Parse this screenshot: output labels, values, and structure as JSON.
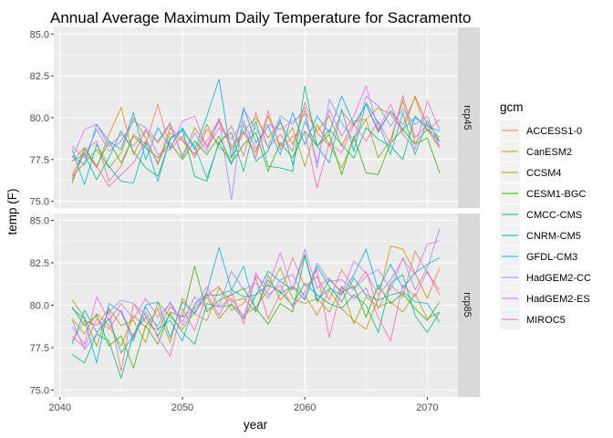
{
  "chart_data": {
    "type": "line",
    "title": "Annual Average Maximum Daily Temperature for Sacramento",
    "xlabel": "year",
    "ylabel": "temp (F)",
    "x_ticks": [
      2040,
      2050,
      2060,
      2070
    ],
    "xlim": [
      2039.5,
      2072.5
    ],
    "y_ticks": [
      75.0,
      77.5,
      80.0,
      82.5,
      85.0
    ],
    "y_tick_labels": [
      "75.0",
      "77.5",
      "80.0",
      "82.5",
      "85.0"
    ],
    "ylim": [
      74.6,
      85.4
    ],
    "grid": true,
    "legend_title": "gcm",
    "legend_position": "right",
    "x": [
      2041,
      2042,
      2043,
      2044,
      2045,
      2046,
      2047,
      2048,
      2049,
      2050,
      2051,
      2052,
      2053,
      2054,
      2055,
      2056,
      2057,
      2058,
      2059,
      2060,
      2061,
      2062,
      2063,
      2064,
      2065,
      2066,
      2067,
      2068,
      2069,
      2070,
      2071
    ],
    "series_colors": {
      "ACCESS1-0": "#F8766D",
      "CanESM2": "#D89000",
      "CCSM4": "#A3A500",
      "CESM1-BGC": "#39B600",
      "CMCC-CMS": "#00BF7D",
      "CNRM-CM5": "#00BFC4",
      "GFDL-CM3": "#00B0F6",
      "HadGEM2-CC": "#9590FF",
      "HadGEM2-ES": "#E76BF3",
      "MIROC5": "#FF62BC"
    },
    "panels": [
      {
        "label": "rcp45",
        "series": [
          {
            "name": "ACCESS1-0",
            "values": [
              76.6,
              78.0,
              78.6,
              76.2,
              77.1,
              79.0,
              78.4,
              80.8,
              78.1,
              78.9,
              77.6,
              79.3,
              78.4,
              79.5,
              77.7,
              80.3,
              78.2,
              79.0,
              78.0,
              80.9,
              79.1,
              78.3,
              80.4,
              79.5,
              80.8,
              79.1,
              80.4,
              79.6,
              81.2,
              79.2,
              79.9
            ]
          },
          {
            "name": "CanESM2",
            "values": [
              77.4,
              78.2,
              77.0,
              79.0,
              80.6,
              77.8,
              79.2,
              78.5,
              79.6,
              77.7,
              79.4,
              78.3,
              79.8,
              78.1,
              79.2,
              80.0,
              78.8,
              79.7,
              78.4,
              80.4,
              79.2,
              80.1,
              78.3,
              79.8,
              79.9,
              80.6,
              80.2,
              79.2,
              81.3,
              79.6,
              78.8
            ]
          },
          {
            "name": "CCSM4",
            "values": [
              76.5,
              77.3,
              78.1,
              77.0,
              77.9,
              80.0,
              78.8,
              77.2,
              79.1,
              78.6,
              77.8,
              79.6,
              78.2,
              77.6,
              79.1,
              77.9,
              80.1,
              78.3,
              79.4,
              77.1,
              79.6,
              78.4,
              77.0,
              78.7,
              79.9,
              77.6,
              78.7,
              81.0,
              78.5,
              79.3,
              78.2
            ]
          },
          {
            "name": "CESM1-BGC",
            "values": [
              76.1,
              78.2,
              77.1,
              78.6,
              77.3,
              78.9,
              78.2,
              77.6,
              78.5,
              77.5,
              78.6,
              77.8,
              78.9,
              77.3,
              78.4,
              79.1,
              76.8,
              78.5,
              77.6,
              79.2,
              78.3,
              79.0,
              76.6,
              78.9,
              76.7,
              76.6,
              78.5,
              79.3,
              78.4,
              78.8,
              76.7
            ]
          },
          {
            "name": "CMCC-CMS",
            "values": [
              77.4,
              77.8,
              76.3,
              77.6,
              79.2,
              78.0,
              77.0,
              76.5,
              78.7,
              79.3,
              76.5,
              76.2,
              78.6,
              79.1,
              76.8,
              79.8,
              77.1,
              77.0,
              76.8,
              81.9,
              78.3,
              79.3,
              78.4,
              77.6,
              79.4,
              78.7,
              78.3,
              77.5,
              80.1,
              79.3,
              78.6
            ]
          },
          {
            "name": "CNRM-CM5",
            "values": [
              78.1,
              76.0,
              78.4,
              77.1,
              76.2,
              76.1,
              78.5,
              76.2,
              78.8,
              79.2,
              78.3,
              76.4,
              78.5,
              77.2,
              79.6,
              77.4,
              78.0,
              79.9,
              77.2,
              79.8,
              78.3,
              77.3,
              80.5,
              78.0,
              80.9,
              79.7,
              77.8,
              80.3,
              77.8,
              79.8,
              78.6
            ]
          },
          {
            "name": "GFDL-CM3",
            "values": [
              77.7,
              77.2,
              79.6,
              78.6,
              78.1,
              80.3,
              77.5,
              79.4,
              78.2,
              79.4,
              78.1,
              80.1,
              82.3,
              77.6,
              80.6,
              78.5,
              79.5,
              77.8,
              80.3,
              78.4,
              80.1,
              79.1,
              81.3,
              79.6,
              80.8,
              79.2,
              80.4,
              79.3,
              80.0,
              79.5,
              79.2
            ]
          },
          {
            "name": "HadGEM2-CC",
            "values": [
              78.3,
              77.6,
              79.3,
              78.0,
              78.6,
              79.8,
              79.4,
              78.6,
              79.7,
              77.6,
              79.1,
              78.0,
              80.0,
              75.1,
              80.5,
              79.3,
              78.3,
              80.1,
              79.6,
              80.6,
              77.0,
              81.1,
              79.7,
              78.6,
              81.3,
              80.7,
              79.5,
              80.5,
              79.6,
              80.1,
              78.3
            ]
          },
          {
            "name": "HadGEM2-ES",
            "values": [
              77.6,
              79.3,
              79.6,
              78.3,
              79.0,
              78.3,
              79.3,
              77.8,
              78.1,
              79.8,
              80.1,
              78.2,
              79.4,
              78.7,
              79.8,
              78.1,
              79.6,
              79.3,
              79.8,
              80.2,
              77.3,
              80.5,
              78.9,
              80.1,
              81.9,
              79.3,
              80.8,
              79.0,
              78.1,
              81.0,
              79.3
            ]
          },
          {
            "name": "MIROC5",
            "values": [
              76.3,
              77.9,
              77.1,
              75.9,
              76.6,
              77.3,
              78.6,
              77.3,
              79.4,
              78.7,
              77.8,
              78.6,
              79.9,
              78.3,
              79.2,
              77.6,
              80.4,
              78.1,
              78.9,
              79.1,
              75.8,
              78.5,
              77.9,
              79.6,
              78.6,
              79.8,
              78.4,
              81.3,
              78.8,
              79.6,
              78.2
            ]
          }
        ]
      },
      {
        "label": "rcp85",
        "series": [
          {
            "name": "ACCESS1-0",
            "values": [
              77.9,
              79.1,
              78.8,
              79.8,
              76.1,
              80.1,
              79.0,
              78.5,
              79.9,
              79.3,
              79.8,
              80.6,
              81.1,
              79.7,
              80.1,
              81.6,
              79.2,
              80.7,
              82.8,
              81.1,
              81.7,
              80.3,
              82.1,
              81.0,
              82.0,
              79.8,
              81.2,
              80.5,
              83.2,
              81.9,
              80.9
            ]
          },
          {
            "name": "CanESM2",
            "values": [
              79.2,
              78.3,
              79.5,
              78.8,
              77.6,
              79.4,
              78.7,
              79.8,
              77.8,
              80.4,
              79.5,
              79.1,
              81.0,
              80.2,
              80.4,
              79.6,
              81.8,
              80.3,
              81.1,
              80.6,
              79.4,
              80.9,
              79.8,
              79.1,
              78.6,
              80.4,
              83.5,
              83.3,
              81.9,
              80.4,
              82.2
            ]
          },
          {
            "name": "CCSM4",
            "values": [
              80.3,
              79.3,
              77.6,
              79.8,
              78.8,
              79.1,
              77.8,
              80.2,
              79.3,
              78.6,
              79.6,
              80.5,
              79.2,
              80.1,
              79.4,
              79.9,
              80.9,
              82.2,
              80.4,
              80.1,
              80.4,
              79.6,
              81.1,
              78.9,
              80.5,
              79.9,
              80.2,
              79.6,
              80.7,
              79.2,
              79.6
            ]
          },
          {
            "name": "CESM1-BGC",
            "values": [
              79.9,
              78.8,
              79.4,
              77.6,
              78.2,
              76.3,
              78.8,
              77.7,
              79.6,
              79.3,
              82.3,
              79.6,
              80.3,
              80.6,
              81.0,
              79.8,
              78.9,
              80.1,
              79.6,
              82.9,
              80.2,
              81.5,
              80.8,
              81.1,
              79.3,
              81.2,
              80.1,
              80.7,
              79.8,
              79.1,
              80.2
            ]
          },
          {
            "name": "CMCC-CMS",
            "values": [
              77.1,
              76.6,
              78.3,
              77.9,
              75.7,
              78.3,
              79.3,
              78.2,
              79.5,
              78.4,
              77.7,
              80.1,
              79.9,
              80.0,
              79.2,
              80.6,
              81.2,
              80.8,
              80.0,
              81.3,
              80.6,
              80.1,
              79.8,
              80.6,
              80.0,
              78.4,
              81.3,
              81.8,
              79.4,
              78.4,
              79.6
            ]
          },
          {
            "name": "CNRM-CM5",
            "values": [
              77.7,
              79.7,
              78.4,
              79.2,
              77.2,
              78.2,
              79.9,
              78.6,
              79.1,
              77.9,
              80.1,
              80.6,
              80.6,
              80.9,
              82.3,
              79.6,
              81.5,
              80.7,
              81.1,
              80.3,
              82.3,
              81.1,
              80.2,
              81.6,
              80.6,
              80.3,
              80.6,
              80.8,
              80.2,
              80.1,
              79.0
            ]
          },
          {
            "name": "GFDL-CM3",
            "values": [
              79.8,
              79.2,
              76.6,
              80.1,
              79.6,
              77.9,
              80.0,
              80.2,
              78.1,
              80.2,
              79.5,
              80.8,
              83.4,
              80.9,
              80.5,
              80.6,
              82.0,
              81.4,
              80.9,
              83.0,
              80.3,
              81.0,
              80.6,
              81.8,
              83.3,
              80.9,
              82.4,
              81.0,
              81.9,
              82.4,
              82.8
            ]
          },
          {
            "name": "HadGEM2-CC",
            "values": [
              79.1,
              77.4,
              78.3,
              79.6,
              80.3,
              80.1,
              79.4,
              78.8,
              80.2,
              79.0,
              80.5,
              79.8,
              80.0,
              82.0,
              80.9,
              81.3,
              80.4,
              81.5,
              81.8,
              80.4,
              82.5,
              81.4,
              81.5,
              80.9,
              81.7,
              82.1,
              80.9,
              82.8,
              80.9,
              82.2,
              84.5
            ]
          },
          {
            "name": "HadGEM2-ES",
            "values": [
              78.7,
              77.7,
              80.5,
              79.1,
              80.1,
              79.2,
              80.4,
              79.3,
              80.1,
              78.8,
              79.9,
              81.1,
              79.9,
              80.4,
              79.3,
              81.7,
              81.1,
              83.1,
              80.9,
              83.3,
              81.0,
              81.6,
              80.7,
              82.6,
              81.9,
              80.6,
              81.5,
              82.7,
              81.8,
              83.6,
              83.8
            ]
          },
          {
            "name": "MIROC5",
            "values": [
              78.2,
              77.5,
              79.2,
              78.6,
              79.7,
              78.1,
              79.6,
              78.1,
              77.0,
              79.8,
              78.5,
              80.7,
              79.4,
              80.8,
              78.9,
              81.9,
              80.6,
              81.2,
              79.9,
              80.8,
              82.1,
              78.1,
              81.1,
              80.4,
              81.0,
              79.3,
              77.9,
              81.2,
              80.5,
              82.0,
              80.6
            ]
          }
        ]
      }
    ]
  }
}
